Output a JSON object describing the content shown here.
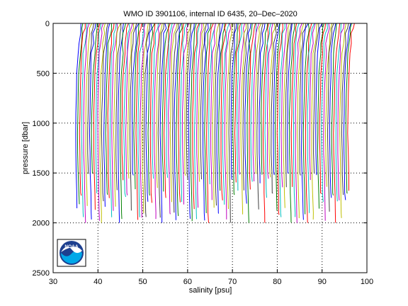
{
  "chart_data": {
    "type": "line",
    "title": "WMO ID 3901106, internal ID 6435, 20–Dec–2020",
    "xlabel": "salinity [psu]",
    "ylabel": "pressure [dbar]",
    "xlim": [
      30,
      100
    ],
    "ylim": [
      0,
      2500
    ],
    "y_reversed": true,
    "grid": "dotted",
    "xticks": [
      "30",
      "40",
      "50",
      "60",
      "70",
      "80",
      "90",
      "100"
    ],
    "yticks": [
      "0",
      "500",
      "1000",
      "1500",
      "2000",
      "2500"
    ],
    "waterfall": {
      "profile_count": 136,
      "first_profile_offset": 0,
      "offset_step": 0.45,
      "deep_pressure_range": [
        1500,
        2040
      ],
      "series_colors": [
        "#0000ff",
        "#008000",
        "#ff0000",
        "#00bfbf",
        "#bf00bf",
        "#bfbf00",
        "#404040"
      ]
    },
    "reference_profile": {
      "pressure": [
        0,
        50,
        100,
        200,
        300,
        500,
        700,
        900,
        1100,
        1300,
        1500,
        1700,
        1900,
        2000
      ],
      "salinity": [
        36.3,
        36.1,
        35.9,
        35.7,
        35.5,
        35.3,
        35.15,
        35.05,
        35.0,
        35.05,
        35.15,
        35.25,
        35.35,
        35.4
      ]
    }
  },
  "logo": {
    "text": "NOAA",
    "colors": {
      "navy": "#1d3f8f",
      "sky": "#00a8e8",
      "white": "#ffffff"
    }
  }
}
